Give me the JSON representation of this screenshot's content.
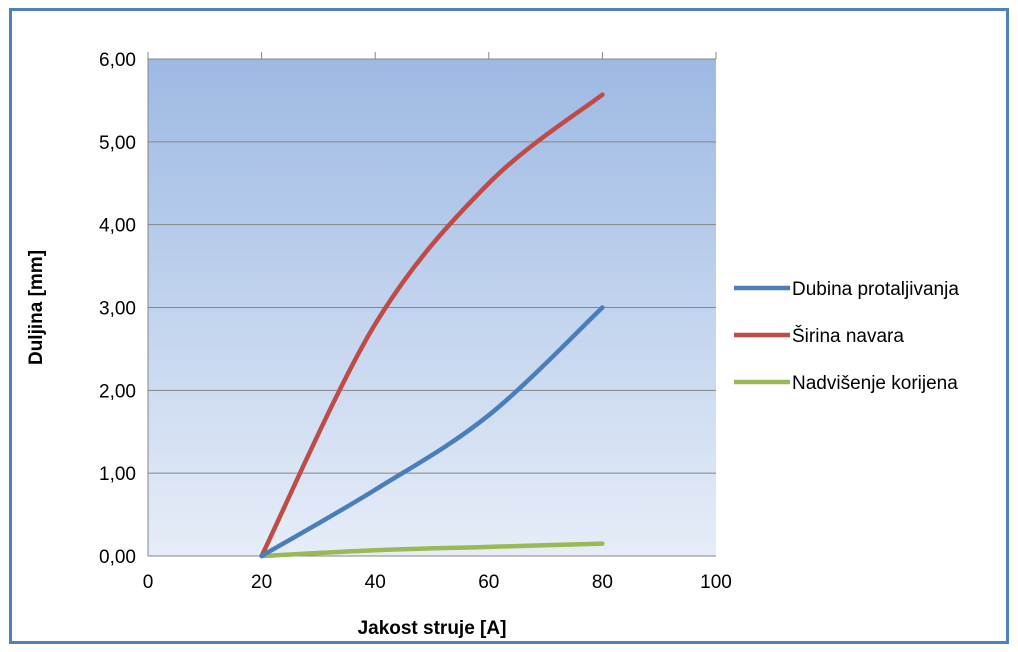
{
  "chart_data": {
    "type": "line",
    "xlabel": "Jakost struje [A]",
    "ylabel": "Duljina [mm]",
    "xlim": [
      0,
      100
    ],
    "ylim": [
      0,
      6
    ],
    "x_ticks": [
      0,
      20,
      40,
      60,
      80,
      100
    ],
    "x_tick_labels": [
      "0",
      "20",
      "40",
      "60",
      "80",
      "100"
    ],
    "y_ticks": [
      0,
      1,
      2,
      3,
      4,
      5,
      6
    ],
    "y_tick_labels": [
      "0,00",
      "1,00",
      "2,00",
      "3,00",
      "4,00",
      "5,00",
      "6,00"
    ],
    "grid": "horizontal",
    "legend_position": "right",
    "background_gradient": [
      "#9db9e3",
      "#e6edf8"
    ],
    "series": [
      {
        "name": "Dubina protaljivanja",
        "color": "#4a7ebb",
        "x": [
          20,
          40,
          60,
          80
        ],
        "y": [
          0,
          0.8,
          1.7,
          3.0
        ]
      },
      {
        "name": "Širina navara",
        "color": "#be4b48",
        "x": [
          20,
          40,
          60,
          80
        ],
        "y": [
          0,
          2.8,
          4.5,
          5.57
        ]
      },
      {
        "name": "Nadvišenje korijena",
        "color": "#98b954",
        "x": [
          20,
          40,
          60,
          80
        ],
        "y": [
          0,
          0.07,
          0.11,
          0.15
        ]
      }
    ]
  }
}
